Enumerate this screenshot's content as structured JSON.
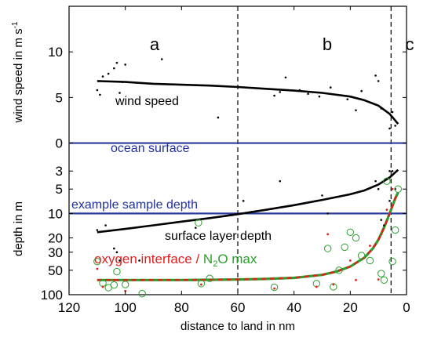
{
  "chart_data": {
    "type": "scatter",
    "xlabel": "distance to land in nm",
    "x_ticks": [
      120,
      100,
      80,
      60,
      40,
      20,
      0
    ],
    "xlim": [
      120,
      0
    ],
    "top_panel": {
      "ylabel": "wind speed in m s",
      "ylabel_sup": "-1",
      "y_ticks": [
        0,
        5,
        10
      ],
      "ylim": [
        -1.5,
        15
      ],
      "wind_points": [
        [
          110,
          5.8
        ],
        [
          109,
          5.3
        ],
        [
          108,
          7.3
        ],
        [
          106,
          7.6
        ],
        [
          104,
          8.2
        ],
        [
          103,
          8.8
        ],
        [
          102,
          5.5
        ],
        [
          101,
          6.7
        ],
        [
          100,
          8.6
        ],
        [
          87,
          9.2
        ],
        [
          67,
          2.8
        ],
        [
          47,
          5.2
        ],
        [
          45,
          5.6
        ],
        [
          43,
          7.2
        ],
        [
          38,
          5.8
        ],
        [
          35,
          5.4
        ],
        [
          31,
          5.1
        ],
        [
          27,
          6.1
        ],
        [
          21,
          4.8
        ],
        [
          18,
          3.6
        ],
        [
          16,
          5.7
        ],
        [
          11,
          7.4
        ],
        [
          10,
          6.8
        ],
        [
          9,
          3.8
        ],
        [
          6,
          1.6
        ],
        [
          5,
          3.4
        ],
        [
          4,
          1.9
        ]
      ],
      "wind_curve_x": [
        110,
        100,
        90,
        80,
        70,
        60,
        50,
        40,
        30,
        20,
        15,
        10,
        6,
        3
      ],
      "wind_curve_y": [
        6.8,
        6.7,
        6.5,
        6.4,
        6.3,
        6.15,
        5.95,
        5.75,
        5.5,
        5.1,
        4.7,
        4.1,
        3.2,
        2.1
      ],
      "curve_label": "wind speed",
      "hline_y": 0,
      "hline_label": "ocean surface"
    },
    "bottom_panel": {
      "ylabel": "depth in m",
      "y_ticks": [
        3,
        5,
        10,
        20,
        30,
        50,
        100
      ],
      "ylim": [
        2,
        100
      ],
      "y_scale": "log",
      "y_reversed": true,
      "sample_depth": 10,
      "sample_depth_label": "example sample depth",
      "surface_layer_points": [
        [
          110,
          16
        ],
        [
          107,
          14
        ],
        [
          104,
          27
        ],
        [
          103,
          30
        ],
        [
          102,
          38
        ],
        [
          95,
          38
        ],
        [
          75,
          15
        ],
        [
          58,
          7
        ],
        [
          45,
          4
        ],
        [
          30,
          6
        ],
        [
          28,
          10
        ],
        [
          11,
          4
        ],
        [
          10,
          5
        ],
        [
          9,
          12
        ],
        [
          8,
          14
        ],
        [
          6,
          7
        ],
        [
          6,
          3
        ],
        [
          5,
          3
        ],
        [
          4,
          5
        ]
      ],
      "surface_layer_curve_x": [
        110,
        100,
        90,
        80,
        70,
        60,
        50,
        40,
        30,
        20,
        15,
        10,
        6,
        3
      ],
      "surface_layer_curve_y": [
        17,
        15.5,
        14,
        12.6,
        11.4,
        10.2,
        9.0,
        7.9,
        6.8,
        5.8,
        5.2,
        4.4,
        3.6,
        2.9
      ],
      "surface_layer_label": "surface layer depth",
      "n2o_circles": [
        [
          110,
          39
        ],
        [
          108,
          72
        ],
        [
          106,
          82
        ],
        [
          104,
          76
        ],
        [
          103,
          52
        ],
        [
          100,
          75
        ],
        [
          94,
          97
        ],
        [
          74,
          13
        ],
        [
          73,
          73
        ],
        [
          70,
          63
        ],
        [
          47,
          81
        ],
        [
          32,
          73
        ],
        [
          28,
          27
        ],
        [
          26,
          80
        ],
        [
          24,
          50
        ],
        [
          22,
          26
        ],
        [
          20,
          17
        ],
        [
          18,
          20
        ],
        [
          16,
          33
        ],
        [
          13,
          38
        ],
        [
          9,
          55
        ],
        [
          8,
          66
        ],
        [
          7,
          4
        ],
        [
          5,
          39
        ],
        [
          4,
          16
        ],
        [
          3,
          5
        ]
      ],
      "oxygen_points": [
        [
          110,
          48
        ],
        [
          108,
          80
        ],
        [
          104,
          66
        ],
        [
          100,
          90
        ],
        [
          73,
          75
        ],
        [
          47,
          84
        ],
        [
          32,
          80
        ],
        [
          28,
          18
        ],
        [
          26,
          75
        ],
        [
          20,
          38
        ],
        [
          18,
          66
        ],
        [
          13,
          25
        ],
        [
          10,
          65
        ],
        [
          9,
          18
        ],
        [
          7,
          9
        ],
        [
          5,
          5
        ]
      ],
      "oxygen_curve_x": [
        110,
        100,
        90,
        80,
        70,
        60,
        50,
        40,
        30,
        25,
        20,
        15,
        12,
        10,
        8,
        6,
        4,
        3
      ],
      "oxygen_curve_y": [
        66,
        66,
        66,
        66,
        65.5,
        65,
        64,
        62,
        57,
        52,
        45,
        35,
        27,
        21,
        15,
        10,
        6.5,
        5.5
      ],
      "oxygen_label_part1": "oxygen interface",
      "separator": " / ",
      "n2o_label_N": "N",
      "n2o_label_sub": "2",
      "n2o_label_rest": "O max"
    },
    "region_boundaries": [
      60,
      5.5
    ],
    "region_labels": [
      "a",
      "b",
      "c"
    ],
    "colors": {
      "black": "#000000",
      "blue": "#2a3a9c",
      "red": "#e02020",
      "green": "#2aa02a"
    }
  }
}
